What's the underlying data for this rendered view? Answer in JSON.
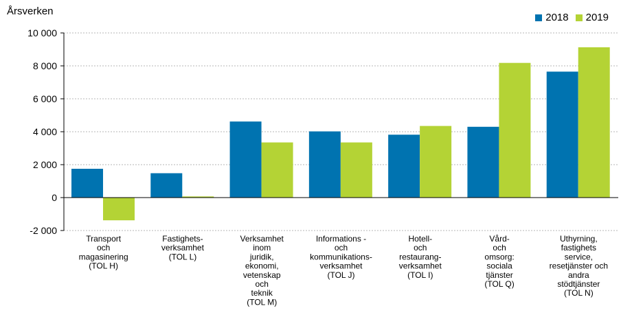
{
  "chart_data": {
    "type": "bar",
    "ylabel": "Årsverken",
    "ylim": [
      -2000,
      10000
    ],
    "yticks": [
      -2000,
      0,
      2000,
      4000,
      6000,
      8000,
      10000
    ],
    "ytick_labels": [
      "-2 000",
      "0",
      "2 000",
      "4 000",
      "6 000",
      "8 000",
      "10 000"
    ],
    "grid": true,
    "legend_position": "top-right",
    "categories": [
      [
        "Transport",
        "och",
        "magasinering",
        "(TOL H)"
      ],
      [
        "Fastighets-",
        "verksamhet",
        "(TOL L)"
      ],
      [
        "Verksamhet",
        "inom",
        "juridik,",
        "ekonomi,",
        "vetenskap",
        "och",
        "teknik",
        "(TOL M)"
      ],
      [
        "Informations -",
        "och",
        "kommunikations-",
        "verksamhet",
        "(TOL J)"
      ],
      [
        "Hotell-",
        "och",
        "restaurang-",
        "verksamhet",
        "(TOL I)"
      ],
      [
        "Vård-",
        "och",
        "omsorg:",
        "sociala",
        "tjänster",
        "(TOL Q)"
      ],
      [
        "Uthyrning,",
        "fastighets",
        "service,",
        "resetjänster och",
        "andra",
        "stödtjänster",
        "(TOL N)"
      ]
    ],
    "series": [
      {
        "name": "2018",
        "color": "#0073b0",
        "values": [
          1750,
          1480,
          4620,
          4020,
          3820,
          4300,
          7650
        ]
      },
      {
        "name": "2019",
        "color": "#b4d335",
        "values": [
          -1380,
          70,
          3350,
          3350,
          4350,
          8180,
          9130
        ]
      }
    ]
  },
  "legend": {
    "items": [
      {
        "label": "2018",
        "color": "#0073b0"
      },
      {
        "label": "2019",
        "color": "#b4d335"
      }
    ]
  }
}
